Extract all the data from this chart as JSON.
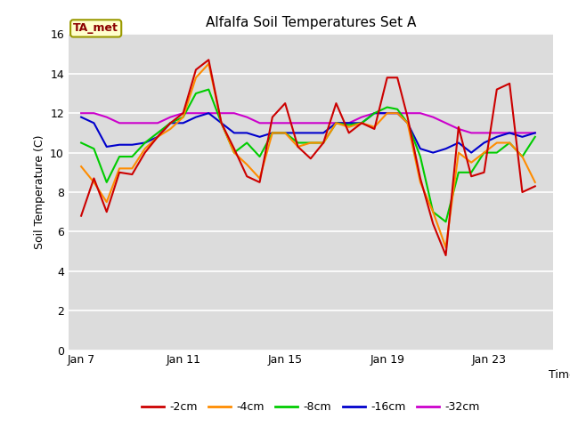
{
  "title": "Alfalfa Soil Temperatures Set A",
  "xlabel": "Time",
  "ylabel": "Soil Temperature (C)",
  "ylim": [
    0,
    16
  ],
  "yticks": [
    0,
    2,
    4,
    6,
    8,
    10,
    12,
    14,
    16
  ],
  "bg_color": "#dcdcdc",
  "fig_color": "#ffffff",
  "annotation_label": "TA_met",
  "xtick_positions": [
    7,
    11,
    15,
    19,
    23
  ],
  "xticklabels": [
    "Jan 7",
    "Jan 11",
    "Jan 15",
    "Jan 19",
    "Jan 23"
  ],
  "xlim": [
    6.5,
    25.5
  ],
  "x": [
    7,
    7.5,
    8,
    8.5,
    9,
    9.5,
    10,
    10.5,
    11,
    11.5,
    12,
    12.5,
    13,
    13.5,
    14,
    14.5,
    15,
    15.5,
    16,
    16.5,
    17,
    17.5,
    18,
    18.5,
    19,
    19.4,
    19.8,
    20.3,
    20.8,
    21.3,
    21.8,
    22.3,
    22.8,
    23.3,
    23.8,
    24.3,
    24.8
  ],
  "series": {
    "2cm": {
      "color": "#cc0000",
      "label": "-2cm",
      "values": [
        6.8,
        8.7,
        7.0,
        9.0,
        8.9,
        10.0,
        10.8,
        11.5,
        12.0,
        14.2,
        14.7,
        11.5,
        10.2,
        8.8,
        8.5,
        11.8,
        12.5,
        10.3,
        9.7,
        10.5,
        12.5,
        11.0,
        11.5,
        11.2,
        13.8,
        13.8,
        11.8,
        8.7,
        6.4,
        4.8,
        11.3,
        8.8,
        9.0,
        13.2,
        13.5,
        8.0,
        8.3
      ]
    },
    "4cm": {
      "color": "#ff8c00",
      "label": "-4cm",
      "values": [
        9.3,
        8.5,
        7.5,
        9.2,
        9.2,
        10.2,
        10.8,
        11.2,
        11.8,
        13.8,
        14.5,
        11.5,
        10.0,
        9.4,
        8.7,
        11.0,
        11.0,
        10.3,
        10.5,
        10.5,
        11.5,
        11.3,
        11.5,
        11.3,
        12.0,
        12.0,
        11.5,
        8.5,
        7.0,
        5.2,
        10.0,
        9.5,
        10.0,
        10.5,
        10.5,
        9.8,
        8.5
      ]
    },
    "8cm": {
      "color": "#00cc00",
      "label": "-8cm",
      "values": [
        10.5,
        10.2,
        8.5,
        9.8,
        9.8,
        10.5,
        11.0,
        11.5,
        11.8,
        13.0,
        13.2,
        11.5,
        10.0,
        10.5,
        9.8,
        11.0,
        11.0,
        10.5,
        10.5,
        10.5,
        11.5,
        11.4,
        11.5,
        12.0,
        12.3,
        12.2,
        11.5,
        9.8,
        7.0,
        6.5,
        9.0,
        9.0,
        10.0,
        10.0,
        10.5,
        9.8,
        10.8
      ]
    },
    "16cm": {
      "color": "#0000cc",
      "label": "-16cm",
      "values": [
        11.8,
        11.5,
        10.3,
        10.4,
        10.4,
        10.5,
        10.8,
        11.5,
        11.5,
        11.8,
        12.0,
        11.5,
        11.0,
        11.0,
        10.8,
        11.0,
        11.0,
        11.0,
        11.0,
        11.0,
        11.5,
        11.5,
        11.5,
        12.0,
        12.0,
        12.0,
        11.5,
        10.2,
        10.0,
        10.2,
        10.5,
        10.0,
        10.5,
        10.8,
        11.0,
        10.8,
        11.0
      ]
    },
    "32cm": {
      "color": "#cc00cc",
      "label": "-32cm",
      "values": [
        12.0,
        12.0,
        11.8,
        11.5,
        11.5,
        11.5,
        11.5,
        11.8,
        12.0,
        12.0,
        12.0,
        12.0,
        12.0,
        11.8,
        11.5,
        11.5,
        11.5,
        11.5,
        11.5,
        11.5,
        11.5,
        11.5,
        11.8,
        12.0,
        12.0,
        12.0,
        12.0,
        12.0,
        11.8,
        11.5,
        11.2,
        11.0,
        11.0,
        11.0,
        11.0,
        11.0,
        11.0
      ]
    }
  },
  "series_order": [
    "32cm",
    "16cm",
    "8cm",
    "4cm",
    "2cm"
  ],
  "legend_order": [
    "2cm",
    "4cm",
    "8cm",
    "16cm",
    "32cm"
  ],
  "linewidth": 1.5,
  "title_fontsize": 11,
  "axis_fontsize": 9,
  "tick_fontsize": 9
}
